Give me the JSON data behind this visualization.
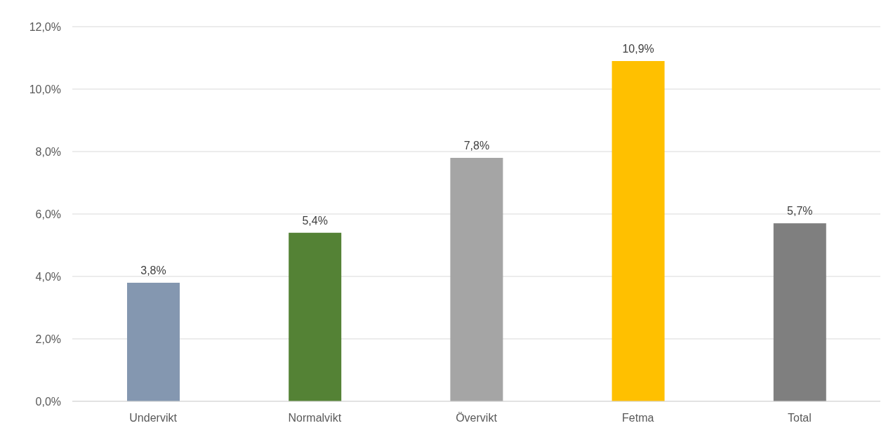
{
  "chart_data": {
    "type": "bar",
    "categories": [
      "Undervikt",
      "Normalvikt",
      "Övervikt",
      "Fetma",
      "Total"
    ],
    "values": [
      3.8,
      5.4,
      7.8,
      10.9,
      5.7
    ],
    "colors": [
      "#8497b0",
      "#548235",
      "#a5a5a5",
      "#ffc000",
      "#7f7f7f"
    ],
    "value_labels": [
      "3,8%",
      "5,4%",
      "7,8%",
      "10,9%",
      "5,7%"
    ],
    "ylim": [
      0,
      12
    ],
    "yticks": [
      {
        "value": 0,
        "label": "0,0%"
      },
      {
        "value": 2,
        "label": "2,0%"
      },
      {
        "value": 4,
        "label": "4,0%"
      },
      {
        "value": 6,
        "label": "6,0%"
      },
      {
        "value": 8,
        "label": "8,0%"
      },
      {
        "value": 10,
        "label": "10,0%"
      },
      {
        "value": 12,
        "label": "12,0%"
      }
    ],
    "grid": "y",
    "legend": false
  }
}
